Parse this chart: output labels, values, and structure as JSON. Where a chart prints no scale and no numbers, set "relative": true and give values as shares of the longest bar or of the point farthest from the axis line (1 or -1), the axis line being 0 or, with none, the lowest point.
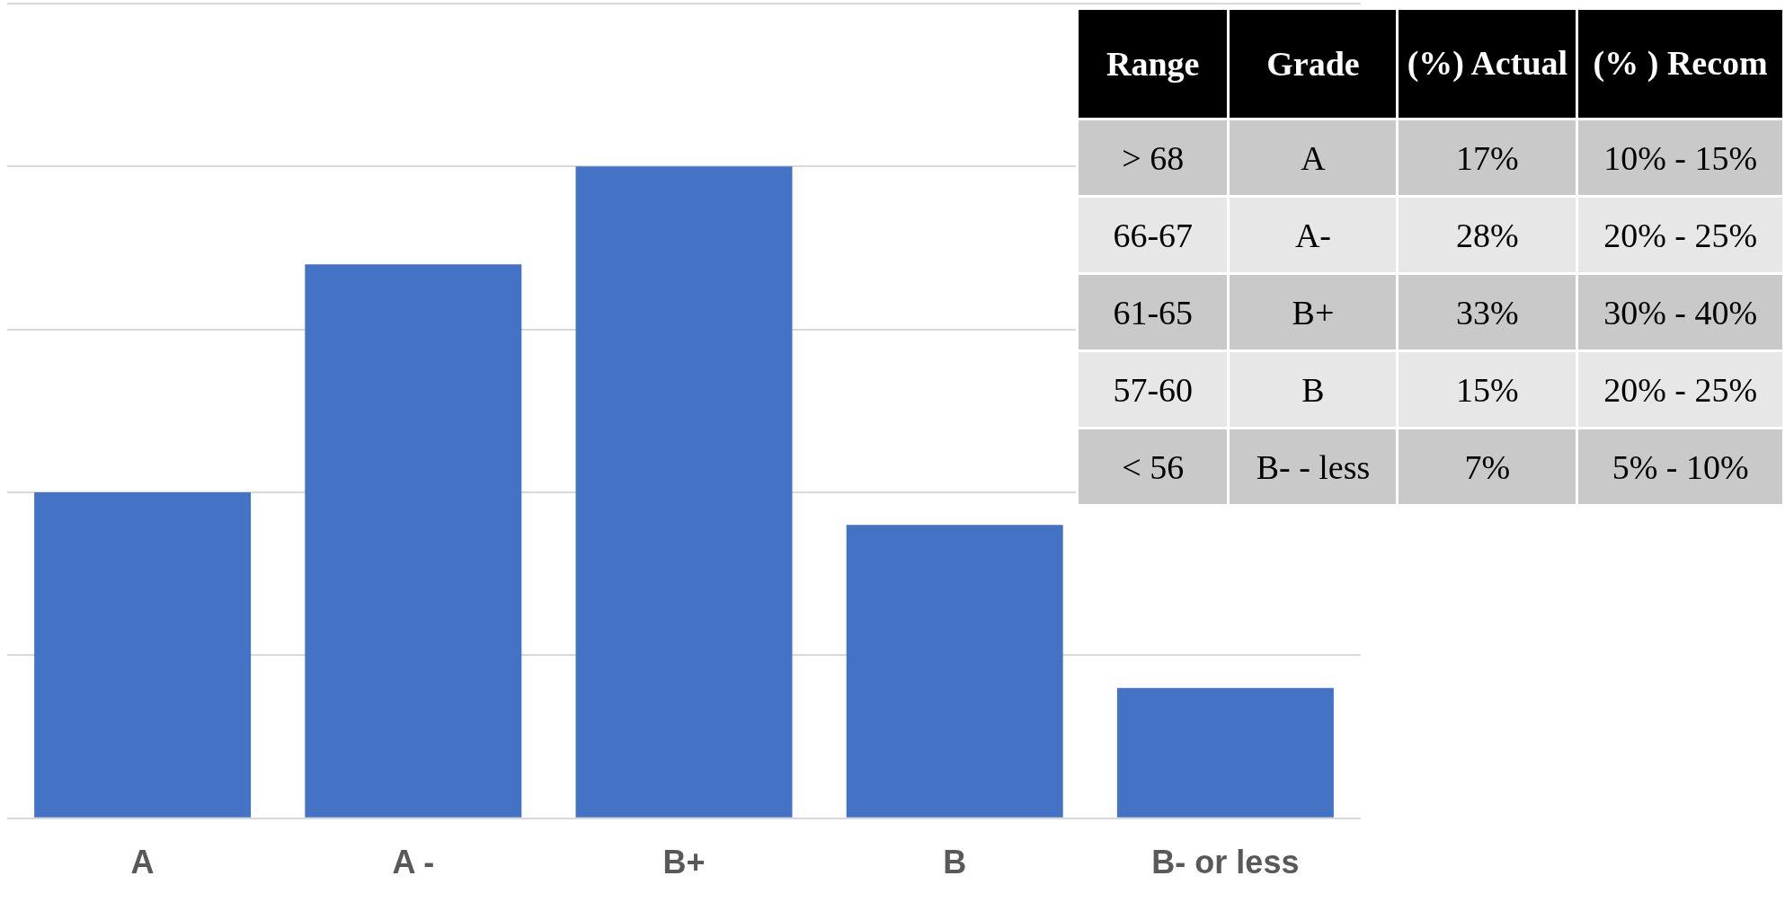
{
  "chart_data": [
    {
      "type": "bar",
      "categories": [
        "A",
        "A -",
        "B+",
        "B",
        "B- or less"
      ],
      "values": [
        0.5,
        0.85,
        1,
        0.45,
        0.2
      ],
      "color": "#4472c4",
      "relative": true,
      "grid": "y"
    },
    {
      "type": "other",
      "annotations": [
        "Range",
        "Grade",
        "(%) Actual",
        "(% ) Recom",
        "> 68",
        "A",
        "17%",
        "10% - 15%",
        "66-67",
        "A-",
        "28%",
        "20% - 25%",
        "61-65",
        "B+",
        "33%",
        "30% - 40%",
        "57-60",
        "B",
        "15%",
        "20% - 25%",
        "< 56",
        "B- - less",
        "7%",
        "5% - 10%"
      ]
    }
  ]
}
